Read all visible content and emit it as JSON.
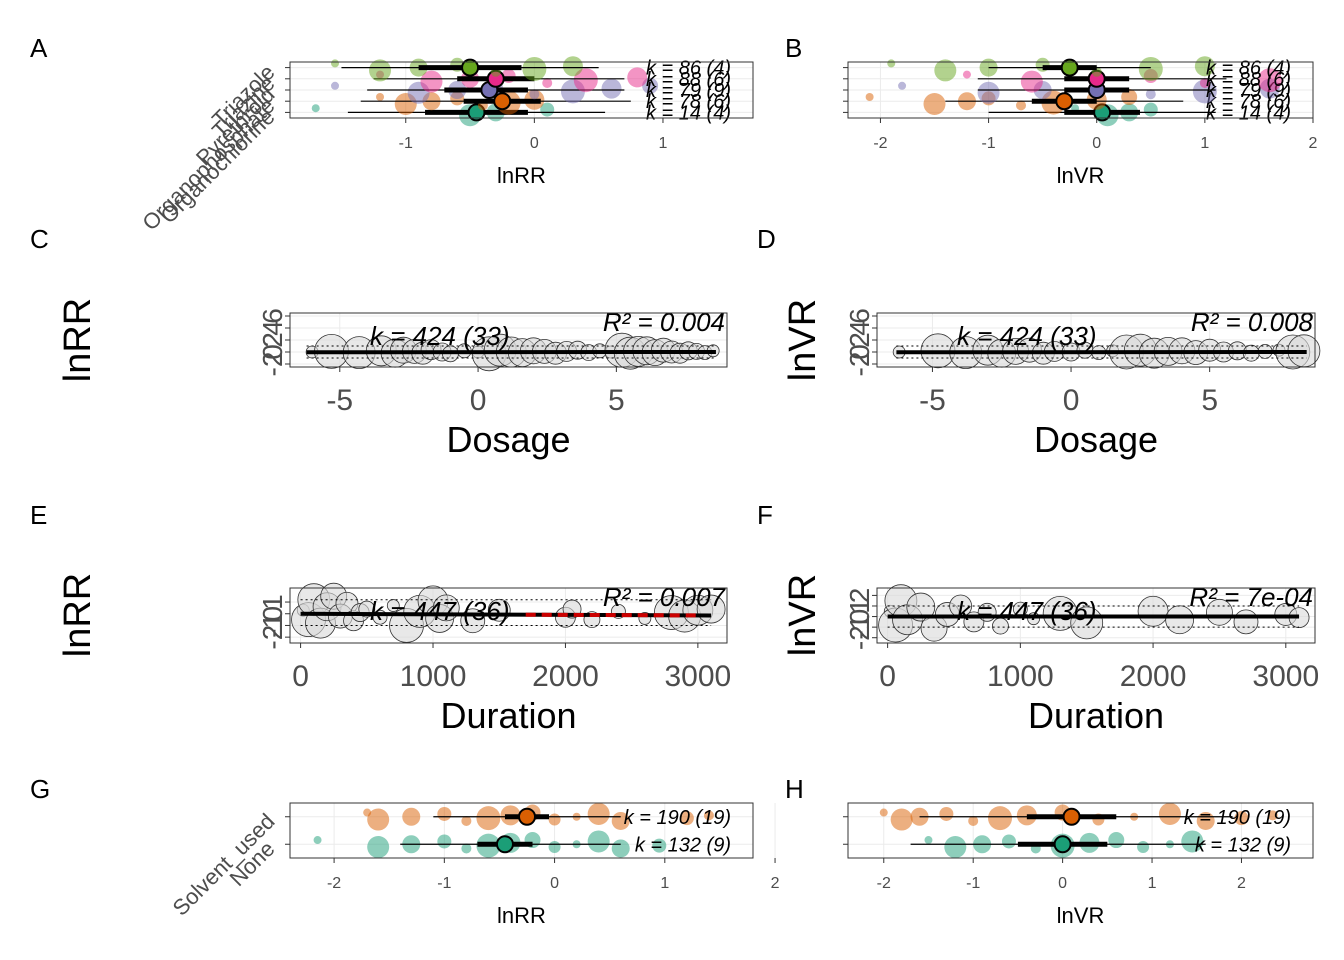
{
  "colors": {
    "Triazole": "#66a61e",
    "Triazine": "#e7298a",
    "Pyrethroid": "#7570b3",
    "Organophosphate": "#d95f02",
    "Organochlorine": "#1b9e77",
    "Solvent_used": "#d95f02",
    "None": "#1b9e77",
    "regression_line": "#000000",
    "regression_line_F": "#cc0000"
  },
  "chart_data": [
    {
      "panel": "A",
      "type": "scatter",
      "xlabel": "lnRR",
      "xlim": [
        -1.9,
        1.7
      ],
      "xticks": [
        -1,
        0,
        1
      ],
      "categories": [
        "Organochlorine",
        "Organophosphate",
        "Pyrethroid",
        "Triazine",
        "Triazole"
      ],
      "series": [
        {
          "name": "Organochlorine",
          "mean": -0.45,
          "ci": [
            -0.85,
            -0.05
          ],
          "pi": [
            -1.45,
            0.55
          ],
          "k_label": "k = 14 (4)",
          "points": [
            -1.7,
            -0.5,
            -0.3,
            0.1
          ]
        },
        {
          "name": "Organophosphate",
          "mean": -0.25,
          "ci": [
            -0.55,
            0.05
          ],
          "pi": [
            -1.35,
            0.75
          ],
          "k_label": "k = 78 (6)",
          "points": [
            -1.2,
            -1.0,
            -0.8,
            -0.6,
            -0.4,
            -0.2,
            0.0
          ]
        },
        {
          "name": "Pyrethroid",
          "mean": -0.35,
          "ci": [
            -0.7,
            -0.05
          ],
          "pi": [
            -1.3,
            0.7
          ],
          "k_label": "k = 79 (9)",
          "points": [
            -1.55,
            -0.9,
            -0.6,
            -0.3,
            0.0,
            0.3,
            0.6,
            0.9
          ]
        },
        {
          "name": "Triazine",
          "mean": -0.3,
          "ci": [
            -0.6,
            0.0
          ],
          "pi": [
            -1.25,
            0.7
          ],
          "k_label": "k = 88 (6)",
          "points": [
            -1.2,
            -0.8,
            -0.5,
            -0.2,
            0.1,
            0.4,
            0.8
          ]
        },
        {
          "name": "Triazole",
          "mean": -0.5,
          "ci": [
            -0.9,
            -0.1
          ],
          "pi": [
            -1.5,
            0.5
          ],
          "k_label": "k = 86 (4)",
          "points": [
            -1.55,
            -1.2,
            -0.9,
            -0.6,
            -0.3,
            0.0,
            0.3
          ]
        }
      ]
    },
    {
      "panel": "B",
      "type": "scatter",
      "xlabel": "lnVR",
      "xlim": [
        -2.3,
        2.0
      ],
      "xticks": [
        -2,
        -1,
        0,
        1,
        2
      ],
      "categories": [
        "Organochlorine",
        "Organophosphate",
        "Pyrethroid",
        "Triazine",
        "Triazole"
      ],
      "series": [
        {
          "name": "Organochlorine",
          "mean": 0.05,
          "ci": [
            -0.3,
            0.4
          ],
          "pi": [
            -1.0,
            1.1
          ],
          "k_label": "k = 14 (4)",
          "points": [
            -0.2,
            0.1,
            0.3,
            0.5
          ]
        },
        {
          "name": "Organophosphate",
          "mean": -0.3,
          "ci": [
            -0.6,
            0.0
          ],
          "pi": [
            -1.4,
            0.8
          ],
          "k_label": "k = 78 (6)",
          "points": [
            -2.1,
            -1.5,
            -1.2,
            -1.0,
            -0.7,
            -0.4,
            0.0,
            0.3
          ]
        },
        {
          "name": "Pyrethroid",
          "mean": 0.0,
          "ci": [
            -0.3,
            0.3
          ],
          "pi": [
            -1.1,
            1.1
          ],
          "k_label": "k = 79 (9)",
          "points": [
            -1.8,
            -1.0,
            -0.5,
            0.0,
            0.5,
            1.0,
            1.6
          ]
        },
        {
          "name": "Triazine",
          "mean": 0.0,
          "ci": [
            -0.3,
            0.3
          ],
          "pi": [
            -1.1,
            1.2
          ],
          "k_label": "k = 88 (6)",
          "points": [
            -1.2,
            -0.6,
            0.0,
            0.5,
            1.0,
            1.6
          ]
        },
        {
          "name": "Triazole",
          "mean": -0.25,
          "ci": [
            -0.5,
            0.0
          ],
          "pi": [
            -1.0,
            0.5
          ],
          "k_label": "k = 86 (4)",
          "points": [
            -1.9,
            -1.4,
            -1.0,
            -0.5,
            0.0,
            0.5,
            1.0
          ]
        }
      ]
    },
    {
      "panel": "C",
      "type": "scatter",
      "xlabel": "Dosage",
      "ylabel": "lnRR",
      "xlim": [
        -6.8,
        9.0
      ],
      "xticks": [
        -5,
        0,
        5
      ],
      "ylim": [
        -2.5,
        6.5
      ],
      "yticks": [
        -2,
        0,
        2,
        4,
        6
      ],
      "fit": {
        "x": [
          -6.2,
          8.6
        ],
        "y": [
          -0.05,
          0.0
        ],
        "band": [
          -1.0,
          1.0
        ]
      },
      "k_label": "k = 424 (33)",
      "r2_label": "R² = 0.004",
      "points": [
        [
          -6,
          0
        ],
        [
          -5.3,
          0.1
        ],
        [
          -4.3,
          -0.1
        ],
        [
          -3.5,
          0.2
        ],
        [
          -3.0,
          -0.2
        ],
        [
          -2.7,
          0.3
        ],
        [
          -2.3,
          0.1
        ],
        [
          -2.0,
          -0.2
        ],
        [
          -1.7,
          0.4
        ],
        [
          -1.3,
          0
        ],
        [
          -1.0,
          -0.3
        ],
        [
          -0.5,
          0.2
        ],
        [
          0,
          0
        ],
        [
          0.4,
          -0.3
        ],
        [
          0.8,
          0.3
        ],
        [
          1.2,
          0
        ],
        [
          1.6,
          -0.1
        ],
        [
          2.0,
          0.2
        ],
        [
          2.4,
          0.1
        ],
        [
          2.8,
          -0.2
        ],
        [
          3.2,
          0.1
        ],
        [
          3.6,
          0.3
        ],
        [
          4.0,
          -0.1
        ],
        [
          4.4,
          0.2
        ],
        [
          4.8,
          0
        ],
        [
          5.2,
          0.3
        ],
        [
          5.5,
          -0.2
        ],
        [
          5.8,
          0.1
        ],
        [
          6.1,
          0.2
        ],
        [
          6.4,
          -0.1
        ],
        [
          6.7,
          0.3
        ],
        [
          7.0,
          0
        ],
        [
          7.3,
          -0.2
        ],
        [
          7.6,
          0.2
        ],
        [
          7.9,
          0.1
        ],
        [
          8.2,
          -0.1
        ],
        [
          8.5,
          0.2
        ]
      ]
    },
    {
      "panel": "D",
      "type": "scatter",
      "xlabel": "Dosage",
      "ylabel": "lnVR",
      "xlim": [
        -7.0,
        8.8
      ],
      "xticks": [
        -5,
        0,
        5
      ],
      "ylim": [
        -2.5,
        6.5
      ],
      "yticks": [
        -2,
        0,
        2,
        4,
        6
      ],
      "fit": {
        "x": [
          -6.3,
          8.5
        ],
        "y": [
          -0.05,
          0.0
        ],
        "band": [
          -1.0,
          1.0
        ]
      },
      "k_label": "k = 424 (33)",
      "r2_label": "R² = 0.008",
      "points": [
        [
          -6.2,
          0
        ],
        [
          -4.8,
          0.2
        ],
        [
          -3.8,
          -0.1
        ],
        [
          -3.0,
          0.3
        ],
        [
          -2.5,
          -0.2
        ],
        [
          -2.0,
          0.1
        ],
        [
          -1.5,
          0.3
        ],
        [
          -1.0,
          -0.2
        ],
        [
          -0.6,
          0.1
        ],
        [
          0,
          0
        ],
        [
          0.5,
          0.3
        ],
        [
          1.0,
          -0.1
        ],
        [
          1.5,
          0.2
        ],
        [
          2.0,
          0
        ],
        [
          2.5,
          0.3
        ],
        [
          3.0,
          -0.2
        ],
        [
          3.5,
          0.1
        ],
        [
          4.0,
          0.2
        ],
        [
          4.5,
          -0.1
        ],
        [
          5.0,
          0.3
        ],
        [
          5.5,
          0
        ],
        [
          6.0,
          0.2
        ],
        [
          6.5,
          -0.2
        ],
        [
          7.0,
          0.1
        ],
        [
          7.5,
          0.3
        ],
        [
          8.0,
          0
        ],
        [
          8.4,
          0.2
        ]
      ]
    },
    {
      "panel": "E",
      "type": "scatter",
      "xlabel": "Duration",
      "ylabel": "lnRR",
      "xlim": [
        -80,
        3220
      ],
      "xticks": [
        0,
        1000,
        2000,
        3000
      ],
      "ylim": [
        -2.5,
        2.2
      ],
      "yticks": [
        -2,
        -1,
        0,
        1
      ],
      "fit": {
        "x": [
          0,
          3100
        ],
        "y": [
          0.0,
          -0.15
        ],
        "band": [
          -1.0,
          1.2
        ],
        "highlight": [
          1700,
          3000
        ]
      },
      "k_label": "k = 447 (36)",
      "r2_label": "R² = 0.007",
      "points": [
        [
          20,
          0.3
        ],
        [
          60,
          -0.5
        ],
        [
          100,
          1.2
        ],
        [
          150,
          -0.8
        ],
        [
          200,
          0.6
        ],
        [
          250,
          1.5
        ],
        [
          300,
          -0.2
        ],
        [
          350,
          0.9
        ],
        [
          400,
          -0.6
        ],
        [
          450,
          0.1
        ],
        [
          500,
          0.4
        ],
        [
          600,
          -0.3
        ],
        [
          700,
          0.7
        ],
        [
          800,
          -1.0
        ],
        [
          900,
          0.2
        ],
        [
          1000,
          1.1
        ],
        [
          1050,
          -0.4
        ],
        [
          1100,
          0.5
        ],
        [
          1300,
          -0.6
        ],
        [
          1500,
          0.3
        ],
        [
          2000,
          -0.3
        ],
        [
          2050,
          0.4
        ],
        [
          2200,
          -0.5
        ],
        [
          2400,
          0.2
        ],
        [
          2600,
          -0.4
        ],
        [
          2800,
          0.1
        ],
        [
          2900,
          -0.2
        ],
        [
          3000,
          0.3
        ],
        [
          3100,
          0.4
        ]
      ]
    },
    {
      "panel": "F",
      "type": "scatter",
      "xlabel": "Duration",
      "ylabel": "lnVR",
      "xlim": [
        -80,
        3220
      ],
      "xticks": [
        0,
        1000,
        2000,
        3000
      ],
      "ylim": [
        -2.5,
        2.7
      ],
      "yticks": [
        -2,
        -1,
        0,
        1,
        2
      ],
      "fit": {
        "x": [
          0,
          3100
        ],
        "y": [
          0.0,
          0.0
        ],
        "band": [
          -1.0,
          1.0
        ]
      },
      "k_label": "k = 447 (36)",
      "r2_label": "R² = 7e-04",
      "points": [
        [
          20,
          0.5
        ],
        [
          60,
          -0.8
        ],
        [
          100,
          1.5
        ],
        [
          150,
          -0.3
        ],
        [
          250,
          0.9
        ],
        [
          350,
          -1.1
        ],
        [
          450,
          0.2
        ],
        [
          550,
          1.0
        ],
        [
          650,
          -0.5
        ],
        [
          750,
          0.4
        ],
        [
          850,
          -0.9
        ],
        [
          1000,
          0.7
        ],
        [
          1100,
          -0.2
        ],
        [
          1300,
          0.3
        ],
        [
          1500,
          -0.6
        ],
        [
          2000,
          0.5
        ],
        [
          2200,
          -0.3
        ],
        [
          2500,
          0.4
        ],
        [
          2700,
          -0.5
        ],
        [
          3000,
          0.2
        ],
        [
          3100,
          -0.1
        ]
      ]
    },
    {
      "panel": "G",
      "type": "scatter",
      "xlabel": "lnRR",
      "xlim": [
        -2.4,
        1.8
      ],
      "xticks": [
        -2,
        -1,
        0,
        1,
        2
      ],
      "categories": [
        "None",
        "Solvent_used"
      ],
      "series": [
        {
          "name": "None",
          "mean": -0.45,
          "ci": [
            -0.7,
            -0.2
          ],
          "pi": [
            -1.4,
            0.6
          ],
          "k_label": "k = 132 (9)",
          "points": [
            -2.15,
            -1.6,
            -1.3,
            -1.0,
            -0.8,
            -0.6,
            -0.4,
            -0.2,
            0.0,
            0.2,
            0.4,
            0.6,
            0.95
          ]
        },
        {
          "name": "Solvent_used",
          "mean": -0.25,
          "ci": [
            -0.45,
            -0.05
          ],
          "pi": [
            -1.1,
            0.6
          ],
          "k_label": "k = 190 (19)",
          "points": [
            -1.7,
            -1.6,
            -1.3,
            -1.0,
            -0.8,
            -0.6,
            -0.4,
            -0.2,
            0.0,
            0.2,
            0.4,
            0.6,
            1.2,
            1.4
          ]
        }
      ]
    },
    {
      "panel": "H",
      "type": "scatter",
      "xlabel": "lnVR",
      "xlim": [
        -2.4,
        2.8
      ],
      "xticks": [
        -2,
        -1,
        0,
        1,
        2
      ],
      "categories": [
        "None",
        "Solvent_used"
      ],
      "series": [
        {
          "name": "None",
          "mean": 0.0,
          "ci": [
            -0.5,
            0.5
          ],
          "pi": [
            -1.7,
            1.6
          ],
          "k_label": "k = 132 (9)",
          "points": [
            -1.5,
            -1.2,
            -0.9,
            -0.6,
            -0.3,
            0.0,
            0.3,
            0.6,
            0.9,
            1.2,
            1.45
          ]
        },
        {
          "name": "Solvent_used",
          "mean": 0.1,
          "ci": [
            -0.4,
            0.6
          ],
          "pi": [
            -1.6,
            1.9
          ],
          "k_label": "k = 190 (19)",
          "points": [
            -2.0,
            -1.8,
            -1.6,
            -1.3,
            -1.0,
            -0.7,
            -0.4,
            0.0,
            0.4,
            0.8,
            1.2,
            1.6,
            2.0,
            2.35
          ]
        }
      ]
    }
  ]
}
